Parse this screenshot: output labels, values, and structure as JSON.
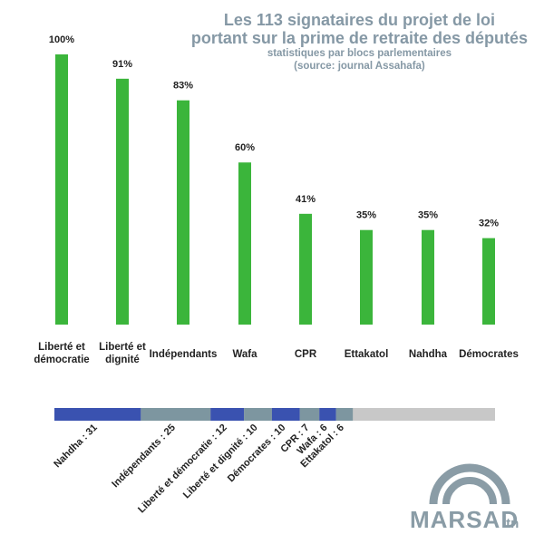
{
  "chart_data": {
    "type": "bar",
    "title": "Les 113 signataires du projet de loi",
    "title_line2": "portant sur la prime de retraite des députés",
    "subtitle": "statistiques par blocs parlementaires",
    "subtitle_line2": "(source: journal Assahafa)",
    "categories": [
      [
        "Liberté et",
        "démocratie"
      ],
      [
        "Liberté et",
        "dignité"
      ],
      [
        "Indépendants"
      ],
      [
        "Wafa"
      ],
      [
        "CPR"
      ],
      [
        "Ettakatol"
      ],
      [
        "Nahdha"
      ],
      [
        "Démocrates"
      ]
    ],
    "values": [
      100,
      91,
      83,
      60,
      41,
      35,
      35,
      32
    ],
    "value_labels": [
      "100%",
      "91%",
      "83%",
      "60%",
      "41%",
      "35%",
      "35%",
      "32%"
    ],
    "ylim": [
      0,
      100
    ],
    "bar_color": "#3bb53b",
    "breakdown": {
      "total": 158,
      "segments": [
        {
          "label": "Nahdha : 31",
          "value": 31,
          "color": "#3a52b0"
        },
        {
          "label": "Indépendants : 25",
          "value": 25,
          "color": "#7d96a0"
        },
        {
          "label": "Liberté et  démocratie : 12",
          "value": 12,
          "color": "#3a52b0"
        },
        {
          "label": "Liberté et dignité : 10",
          "value": 10,
          "color": "#7d96a0"
        },
        {
          "label": "Démocrates : 10",
          "value": 10,
          "color": "#3a52b0"
        },
        {
          "label": "CPR : 7",
          "value": 7,
          "color": "#7d96a0"
        },
        {
          "label": "Wafa : 6",
          "value": 6,
          "color": "#3a52b0"
        },
        {
          "label": "Ettakatol : 6",
          "value": 6,
          "color": "#7d96a0"
        }
      ],
      "remainder_color": "#c8c8c8"
    }
  },
  "logo": {
    "name": "MARSAD",
    "suffix": ".tn",
    "color": "#8a9ca6"
  }
}
